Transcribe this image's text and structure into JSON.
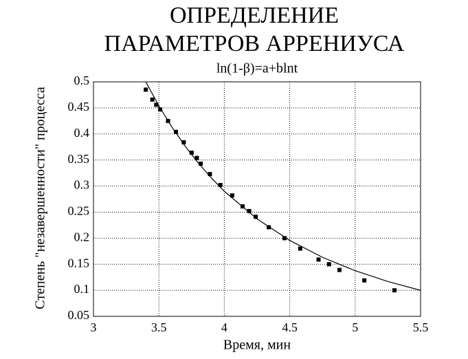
{
  "chart_data": {
    "type": "scatter",
    "title": [
      "ОПРЕДЕЛЕНИЕ",
      "ПАРАМЕТРОВ АРРЕНИУСА"
    ],
    "subtitle": "ln(1-β)=a+blnt",
    "x_label": "Время, мин",
    "y_label": "Степень \"незавершенности\" процесса",
    "xlim": [
      3,
      5.5
    ],
    "xticks": [
      3,
      3.5,
      4,
      4.5,
      5,
      5.5
    ],
    "ylim": [
      0.05,
      0.5
    ],
    "yticks": [
      0.05,
      0.1,
      0.15,
      0.2,
      0.25,
      0.3,
      0.35,
      0.4,
      0.45,
      0.5
    ],
    "grid": true,
    "series": [
      {
        "kind": "points",
        "color": "#000000",
        "x": [
          3.4,
          3.45,
          3.48,
          3.51,
          3.57,
          3.63,
          3.69,
          3.75,
          3.79,
          3.82,
          3.89,
          3.97,
          4.06,
          4.14,
          4.19,
          4.24,
          4.34,
          4.46,
          4.58,
          4.72,
          4.8,
          4.88,
          5.07,
          5.3
        ],
        "values": [
          0.485,
          0.466,
          0.456,
          0.447,
          0.425,
          0.404,
          0.384,
          0.364,
          0.354,
          0.343,
          0.323,
          0.302,
          0.282,
          0.261,
          0.252,
          0.241,
          0.221,
          0.2,
          0.18,
          0.159,
          0.15,
          0.139,
          0.119,
          0.1
        ]
      },
      {
        "kind": "line",
        "color": "#000000",
        "x": [
          3.4,
          3.5,
          3.6,
          3.7,
          3.8,
          3.9,
          4.0,
          4.25,
          4.5,
          4.75,
          5.0,
          5.25,
          5.5
        ],
        "values": [
          0.5,
          0.4538,
          0.413,
          0.3768,
          0.3446,
          0.316,
          0.29,
          0.237,
          0.1957,
          0.1633,
          0.1376,
          0.1169,
          0.1
        ]
      }
    ]
  }
}
